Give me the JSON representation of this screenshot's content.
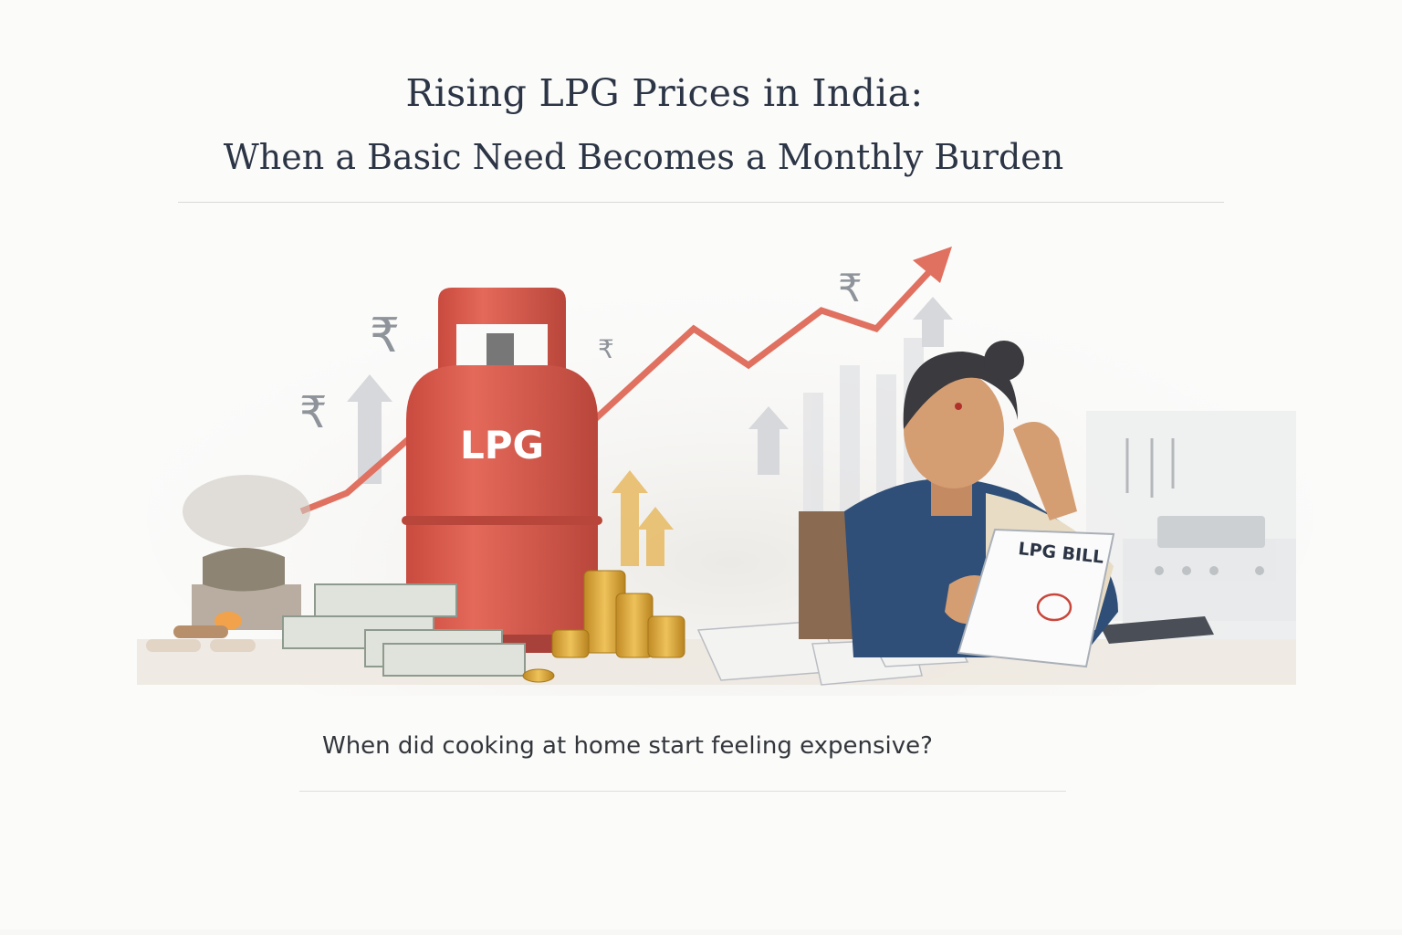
{
  "header": {
    "title_line1": "Rising LPG Prices in India:",
    "title_line2": "When a Basic Need Becomes a Monthly Burden"
  },
  "illustration": {
    "cylinder_label": "LPG",
    "bill_label": "LPG BILL",
    "currency_symbol": "₹",
    "colors": {
      "cylinder": "#d9574a",
      "arrow": "#e0705f",
      "coins": "#d9a63a",
      "saree_blouse": "#2f4f78"
    }
  },
  "caption": "When did cooking at home start feeling expensive?"
}
